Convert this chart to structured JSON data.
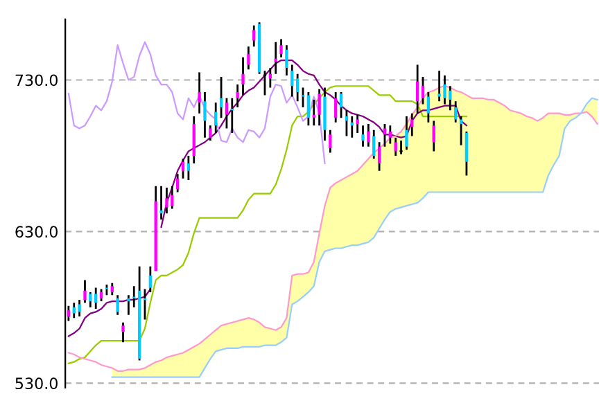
{
  "chart_data": {
    "type": "candlestick",
    "categories": [
      null,
      null,
      null,
      null,
      null,
      null,
      null,
      null,
      null,
      null,
      null,
      null,
      null,
      null,
      null,
      null,
      null,
      null,
      null,
      null,
      null,
      null,
      null,
      null,
      null,
      null,
      null,
      null,
      null,
      null,
      null,
      null,
      null,
      null,
      null,
      null,
      null,
      null,
      null,
      null,
      null,
      null,
      null,
      null,
      null,
      null,
      null,
      null,
      null,
      null,
      null,
      null,
      null,
      null,
      null,
      null,
      null,
      null,
      null,
      null,
      null,
      null,
      null,
      null,
      null,
      null,
      null,
      null,
      null,
      null,
      null,
      null,
      null,
      null,
      null,
      null,
      null,
      null,
      null,
      null,
      null,
      null,
      null,
      null,
      null,
      null,
      null,
      null,
      null,
      null,
      null,
      null,
      null,
      null,
      null,
      null,
      null,
      null
    ],
    "ohlc": [
      [
        574,
        581,
        571,
        578
      ],
      [
        580,
        583,
        573,
        576
      ],
      [
        582,
        585,
        574,
        577
      ],
      [
        585,
        598,
        583,
        591
      ],
      [
        589,
        590,
        580,
        584
      ],
      [
        589,
        593,
        579,
        583
      ],
      [
        586,
        592,
        584,
        590
      ],
      [
        593,
        595,
        588,
        592
      ],
      [
        590,
        596,
        588,
        594
      ],
      [
        586,
        588,
        575,
        577
      ],
      [
        564,
        570,
        557,
        568
      ],
      [
        586,
        588,
        575,
        584
      ],
      [
        587,
        594,
        580,
        586
      ],
      [
        591,
        607,
        545,
        546
      ],
      [
        586,
        592,
        572,
        585
      ],
      [
        601,
        607,
        590,
        593
      ],
      [
        604,
        660,
        604,
        650
      ],
      [
        644,
        660,
        638,
        642
      ],
      [
        646,
        659,
        642,
        652
      ],
      [
        647,
        660,
        645,
        654
      ],
      [
        658,
        668,
        656,
        665
      ],
      [
        670,
        678,
        665,
        676
      ],
      [
        675,
        680,
        664,
        670
      ],
      [
        680,
        706,
        675,
        701
      ],
      [
        715,
        735,
        708,
        722
      ],
      [
        716,
        722,
        692,
        703
      ],
      [
        692,
        700,
        690,
        698
      ],
      [
        709,
        715,
        695,
        700
      ],
      [
        718,
        732,
        705,
        712
      ],
      [
        707,
        718,
        698,
        715
      ],
      [
        711,
        718,
        695,
        710
      ],
      [
        718,
        727,
        712,
        722
      ],
      [
        727,
        745,
        720,
        734
      ],
      [
        740,
        752,
        737,
        747
      ],
      [
        756,
        766,
        752,
        763
      ],
      [
        767,
        768,
        734,
        735
      ],
      [
        733,
        736,
        720,
        733
      ],
      [
        731,
        738,
        725,
        734
      ],
      [
        742,
        755,
        734,
        744
      ],
      [
        747,
        757,
        745,
        753
      ],
      [
        750,
        753,
        733,
        738
      ],
      [
        736,
        740,
        719,
        726
      ],
      [
        731,
        734,
        716,
        722
      ],
      [
        720,
        725,
        712,
        719
      ],
      [
        720,
        722,
        700,
        705
      ],
      [
        705,
        717,
        700,
        707
      ],
      [
        707,
        724,
        700,
        721
      ],
      [
        719,
        725,
        690,
        697
      ],
      [
        685,
        697,
        682,
        694
      ],
      [
        705,
        722,
        702,
        718
      ],
      [
        721,
        722,
        705,
        712
      ],
      [
        706,
        710,
        693,
        703
      ],
      [
        702,
        706,
        692,
        700
      ],
      [
        701,
        707,
        695,
        704
      ],
      [
        694,
        700,
        686,
        690
      ],
      [
        689,
        701,
        686,
        696
      ],
      [
        693,
        697,
        678,
        680
      ],
      [
        675,
        689,
        670,
        686
      ],
      [
        694,
        701,
        686,
        698
      ],
      [
        692,
        700,
        688,
        696
      ],
      [
        683,
        692,
        680,
        689
      ],
      [
        683,
        690,
        681,
        683
      ],
      [
        697,
        706,
        684,
        686
      ],
      [
        699,
        708,
        693,
        704
      ],
      [
        716,
        740,
        708,
        729
      ],
      [
        718,
        732,
        714,
        726
      ],
      [
        719,
        722,
        702,
        708
      ],
      [
        689,
        703,
        683,
        700
      ],
      [
        721,
        736,
        716,
        719
      ],
      [
        727,
        733,
        714,
        718
      ],
      [
        723,
        726,
        710,
        717
      ],
      [
        712,
        716,
        702,
        704
      ],
      [
        704,
        706,
        687,
        701
      ],
      [
        695,
        696,
        667,
        676
      ],
      null,
      null,
      null,
      null,
      null,
      null,
      null,
      null,
      null,
      null,
      null,
      null,
      null,
      null,
      null,
      null,
      null,
      null,
      null,
      null,
      null,
      null,
      null,
      null
    ],
    "colors": [
      "#ff00ff",
      "#00ccff",
      "#00ccff",
      "#ff00ff",
      "#00ccff",
      "#00ccff",
      "#ff00ff",
      "#00ccff",
      "#ff00ff",
      "#00ccff",
      "#ff00ff",
      "#00ccff",
      "#00ccff",
      "#00ccff",
      "#00ccff",
      "#00ccff",
      "#ff00ff",
      "#00ccff",
      "#ff00ff",
      "#ff00ff",
      "#ff00ff",
      "#ff00ff",
      "#00ccff",
      "#ff00ff",
      "#ff00ff",
      "#00ccff",
      "#ff00ff",
      "#00ccff",
      "#00ccff",
      "#ff00ff",
      "#00ccff",
      "#ff00ff",
      "#ff00ff",
      "#ff00ff",
      "#ff00ff",
      "#00ccff",
      "#000000",
      "#ff00ff",
      "#ff00ff",
      "#ff00ff",
      "#00ccff",
      "#00ccff",
      "#00ccff",
      "#00ccff",
      "#00ccff",
      "#ff00ff",
      "#ff00ff",
      "#00ccff",
      "#ff00ff",
      "#ff00ff",
      "#00ccff",
      "#00ccff",
      "#00ccff",
      "#ff00ff",
      "#00ccff",
      "#ff00ff",
      "#00ccff",
      "#ff00ff",
      "#ff00ff",
      "#ff00ff",
      "#ff00ff",
      "#000000",
      "#00ccff",
      "#ff00ff",
      "#ff00ff",
      "#ff00ff",
      "#00ccff",
      "#ff00ff",
      "#00ccff",
      "#00ccff",
      "#00ccff",
      "#00ccff",
      "#00ccff",
      "#00ccff",
      null,
      null,
      null,
      null,
      null,
      null,
      null,
      null,
      null,
      null,
      null,
      null,
      null,
      null,
      null,
      null,
      null,
      null,
      null,
      null,
      null,
      null,
      null,
      null
    ],
    "series": [
      {
        "type": "line",
        "color": "#99cc00",
        "values": [
          543,
          544,
          546,
          547,
          551,
          555,
          558,
          558,
          558,
          558,
          558,
          558,
          558,
          558,
          566,
          583,
          598,
          601,
          601,
          603,
          605,
          608,
          616,
          629,
          639,
          639,
          639,
          639,
          639,
          639,
          639,
          639,
          644,
          651,
          655,
          655,
          655,
          655,
          661,
          671,
          684,
          700,
          706,
          706,
          709,
          714,
          718,
          722,
          725,
          726,
          726,
          726,
          726,
          726,
          726,
          726,
          723,
          720,
          720,
          720,
          716,
          716,
          716,
          716,
          714,
          706,
          706,
          706,
          706,
          706,
          706,
          706,
          706,
          706,
          null,
          null,
          null,
          null,
          null,
          null,
          null,
          null,
          null,
          null,
          null,
          null,
          null,
          null,
          null,
          null,
          null,
          null,
          null,
          null,
          null,
          null,
          null,
          null
        ]
      },
      {
        "type": "line",
        "color": "#800080",
        "values": [
          561,
          563,
          566,
          573,
          576,
          577,
          579,
          583,
          584,
          584,
          584,
          585,
          585,
          586,
          587,
          592,
          null,
          633,
          649,
          659,
          670,
          677,
          683,
          685,
          687,
          689,
          692,
          695,
          700,
          706,
          711,
          715,
          720,
          723,
          725,
          729,
          733,
          737,
          741,
          743,
          743,
          743,
          740,
          736,
          734,
          733,
          727,
          722,
          720,
          717,
          713,
          710,
          708,
          707,
          706,
          704,
          702,
          699,
          694,
          694,
          693,
          692,
          693,
          703,
          708,
          710,
          710,
          711,
          712,
          713,
          713,
          713,
          703,
          700,
          null,
          null,
          null,
          null,
          null,
          null,
          null,
          null,
          null,
          null,
          null,
          null,
          null,
          null,
          null,
          null,
          null,
          null,
          null,
          null,
          null,
          null,
          null,
          null
        ]
      },
      {
        "type": "line",
        "color": "#cc99ff",
        "values": [
          721,
          700,
          698,
          700,
          706,
          713,
          710,
          716,
          729,
          753,
          741,
          730,
          732,
          746,
          755,
          747,
          733,
          727,
          727,
          722,
          708,
          704,
          718,
          712,
          720,
          711,
          707,
          704,
          690,
          689,
          698,
          692,
          689,
          697,
          696,
          692,
          698,
          719,
          727,
          726,
          715,
          720,
          712,
          703,
          706,
          719,
          708,
          675,
          null,
          null,
          null,
          null,
          null,
          null,
          null,
          null,
          null,
          null,
          null,
          null,
          null,
          null,
          null,
          null,
          null,
          null,
          null,
          null,
          null,
          null,
          null,
          null,
          null,
          null,
          null,
          null,
          null,
          null,
          null,
          null,
          null,
          null,
          null,
          null,
          null,
          null,
          null,
          null,
          null,
          null,
          null,
          null,
          null,
          null,
          null,
          null,
          null,
          null
        ]
      },
      {
        "type": "line",
        "color": "#ff99cc",
        "values": [
          550,
          549,
          547,
          546,
          545,
          544,
          542,
          541,
          540,
          538,
          538,
          539,
          539,
          539,
          540,
          542,
          544,
          545,
          547,
          548,
          549,
          550,
          552,
          554,
          556,
          559,
          562,
          565,
          568,
          569,
          570,
          571,
          572,
          573,
          572,
          570,
          567,
          566,
          565,
          567,
          573,
          601,
          602,
          602,
          603,
          610,
          629,
          647,
          659,
          662,
          664,
          666,
          668,
          670,
          674,
          678,
          682,
          685,
          688,
          692,
          693,
          696,
          701,
          707,
          712,
          718,
          722,
          723,
          725,
          726,
          725,
          723,
          722,
          720,
          718,
          718,
          718,
          717,
          717,
          715,
          713,
          710,
          709,
          708,
          706,
          705,
          703,
          705,
          708,
          708,
          708,
          707,
          707,
          708,
          708,
          709,
          706,
          701
        ],
        "upper": [
          null,
          null,
          null,
          null,
          null,
          null,
          null,
          null,
          540,
          538,
          538,
          539,
          539,
          539,
          540,
          542,
          544,
          545,
          547,
          548,
          549,
          550,
          552,
          554,
          556,
          559,
          562,
          565,
          568,
          569,
          570,
          571,
          572,
          573,
          572,
          570,
          567,
          566,
          565,
          567,
          573,
          601,
          602,
          602,
          603,
          610,
          629,
          647,
          659,
          662,
          664,
          666,
          668,
          670,
          674,
          678,
          682,
          685,
          688,
          692,
          693,
          696,
          701,
          707,
          712,
          718,
          722,
          723,
          725,
          726,
          725,
          723,
          722,
          720,
          718,
          718,
          718,
          717,
          717,
          715,
          713,
          710,
          709,
          708,
          706,
          705,
          703,
          705,
          708,
          708,
          708,
          707,
          707,
          708,
          708,
          709,
          706,
          701
        ],
        "lower": [
          null,
          null,
          null,
          null,
          null,
          null,
          null,
          null,
          534,
          534,
          534,
          534,
          534,
          534,
          534,
          534,
          534,
          534,
          534,
          534,
          534,
          534,
          534,
          534,
          534,
          540,
          546,
          551,
          552,
          553,
          553,
          553,
          554,
          554,
          554,
          554,
          555,
          555,
          555,
          557,
          560,
          582,
          584,
          587,
          590,
          594,
          610,
          617,
          618,
          619,
          619,
          620,
          621,
          621,
          622,
          623,
          626,
          632,
          638,
          643,
          645,
          646,
          647,
          648,
          649,
          652,
          656,
          656,
          656,
          656,
          656,
          656,
          656,
          656,
          656,
          656,
          656,
          656,
          656,
          656,
          656,
          656,
          656,
          656,
          656,
          656,
          656,
          656,
          667,
          674,
          680,
          698,
          703,
          705,
          708,
          714,
          718,
          717
        ]
      },
      {
        "type": "line",
        "color": "#99ccff",
        "values": [
          null,
          null,
          null,
          null,
          null,
          null,
          null,
          null,
          534,
          534,
          534,
          534,
          534,
          534,
          534,
          534,
          534,
          534,
          534,
          534,
          534,
          534,
          534,
          534,
          534,
          540,
          546,
          551,
          552,
          553,
          553,
          553,
          554,
          554,
          554,
          554,
          555,
          555,
          555,
          557,
          560,
          582,
          584,
          587,
          590,
          594,
          610,
          617,
          618,
          619,
          619,
          620,
          621,
          621,
          622,
          623,
          626,
          632,
          638,
          643,
          645,
          646,
          647,
          648,
          649,
          652,
          656,
          656,
          656,
          656,
          656,
          656,
          656,
          656,
          656,
          656,
          656,
          656,
          656,
          656,
          656,
          656,
          656,
          656,
          656,
          656,
          656,
          656,
          667,
          674,
          680,
          698,
          703,
          705,
          708,
          714,
          718,
          717
        ]
      }
    ],
    "ylim": [
      527,
      770
    ],
    "yticks": [
      {
        "value": 530,
        "label": "530.0"
      },
      {
        "value": 630,
        "label": "630.0"
      },
      {
        "value": 730,
        "label": "730.0"
      }
    ],
    "tick_labels": "y",
    "grid": "y"
  }
}
